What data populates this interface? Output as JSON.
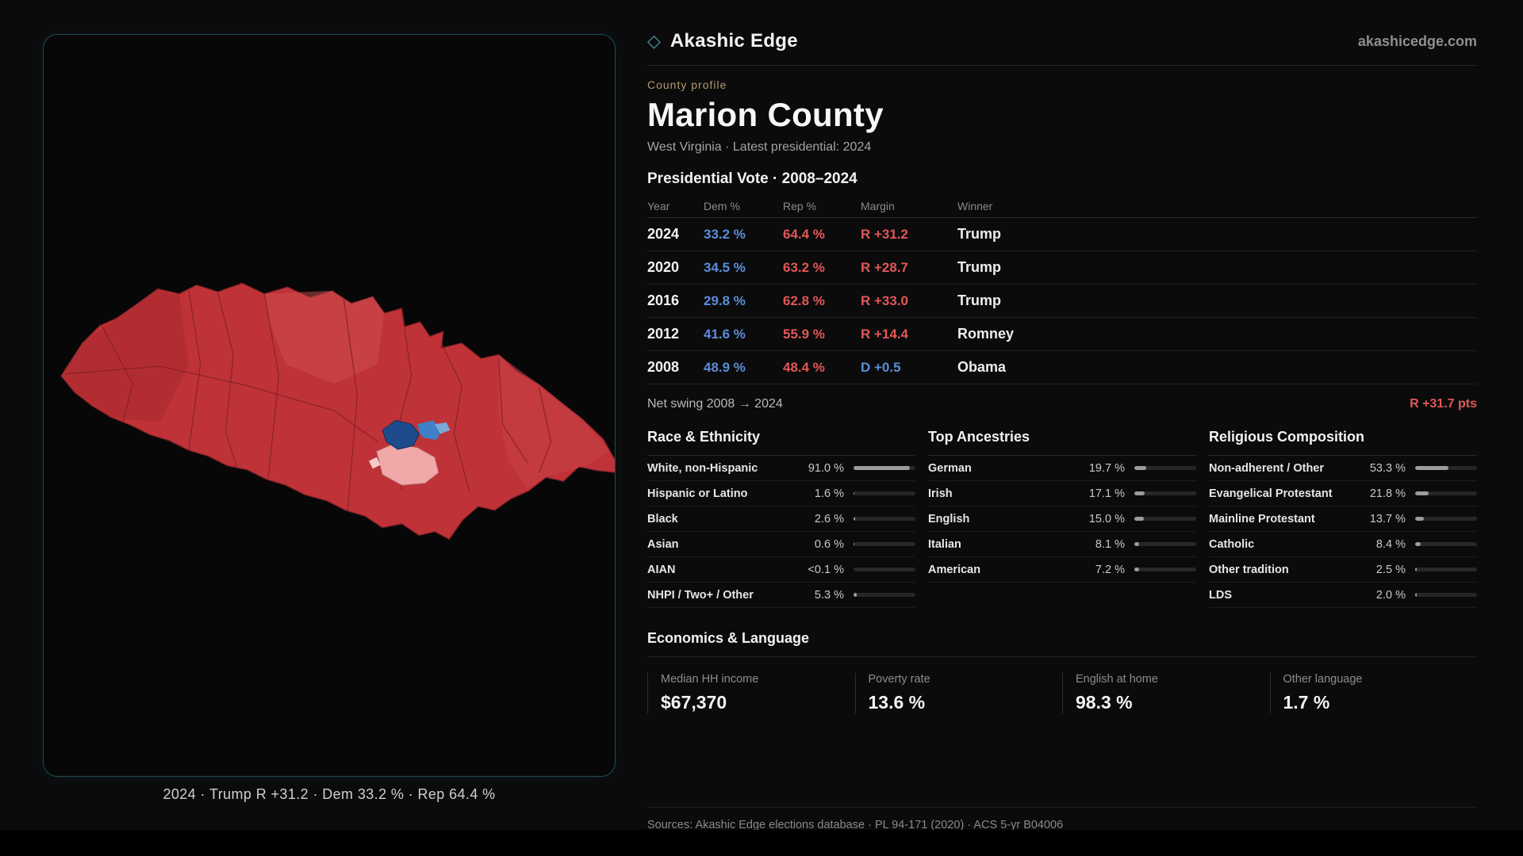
{
  "brand": {
    "logo_glyph": "◇",
    "logo_icon": "diamond-icon",
    "name": "Akashic Edge",
    "domain": "akashicedge.com"
  },
  "profile": {
    "eyebrow": "County profile",
    "title": "Marion County",
    "subtitle": "West Virginia · Latest presidential: 2024"
  },
  "map": {
    "caption": "2024 · Trump R +31.2 · Dem 33.2 % · Rep 64.4 %"
  },
  "vote_table": {
    "title": "Presidential Vote · 2008–2024",
    "headers": {
      "year": "Year",
      "dem": "Dem %",
      "rep": "Rep %",
      "margin": "Margin",
      "winner": "Winner"
    },
    "rows": [
      {
        "year": "2024",
        "dem": "33.2 %",
        "rep": "64.4 %",
        "margin": "R +31.2",
        "margin_party": "R",
        "winner": "Trump"
      },
      {
        "year": "2020",
        "dem": "34.5 %",
        "rep": "63.2 %",
        "margin": "R +28.7",
        "margin_party": "R",
        "winner": "Trump"
      },
      {
        "year": "2016",
        "dem": "29.8 %",
        "rep": "62.8 %",
        "margin": "R +33.0",
        "margin_party": "R",
        "winner": "Trump"
      },
      {
        "year": "2012",
        "dem": "41.6 %",
        "rep": "55.9 %",
        "margin": "R +14.4",
        "margin_party": "R",
        "winner": "Romney"
      },
      {
        "year": "2008",
        "dem": "48.9 %",
        "rep": "48.4 %",
        "margin": "D +0.5",
        "margin_party": "D",
        "winner": "Obama"
      }
    ]
  },
  "net_swing": {
    "label": "Net swing 2008 → 2024",
    "value": "R +31.7 pts"
  },
  "demographics": {
    "race": {
      "title": "Race & Ethnicity",
      "items": [
        {
          "label": "White, non-Hispanic",
          "value": "91.0 %",
          "pct": 91.0
        },
        {
          "label": "Hispanic or Latino",
          "value": "1.6 %",
          "pct": 1.6
        },
        {
          "label": "Black",
          "value": "2.6 %",
          "pct": 2.6
        },
        {
          "label": "Asian",
          "value": "0.6 %",
          "pct": 0.6
        },
        {
          "label": "AIAN",
          "value": "<0.1 %",
          "pct": 0.1
        },
        {
          "label": "NHPI / Two+ / Other",
          "value": "5.3 %",
          "pct": 5.3
        }
      ]
    },
    "ancestries": {
      "title": "Top Ancestries",
      "items": [
        {
          "label": "German",
          "value": "19.7 %",
          "pct": 19.7
        },
        {
          "label": "Irish",
          "value": "17.1 %",
          "pct": 17.1
        },
        {
          "label": "English",
          "value": "15.0 %",
          "pct": 15.0
        },
        {
          "label": "Italian",
          "value": "8.1 %",
          "pct": 8.1
        },
        {
          "label": "American",
          "value": "7.2 %",
          "pct": 7.2
        }
      ]
    },
    "religion": {
      "title": "Religious Composition",
      "items": [
        {
          "label": "Non-adherent / Other",
          "value": "53.3 %",
          "pct": 53.3
        },
        {
          "label": "Evangelical Protestant",
          "value": "21.8 %",
          "pct": 21.8
        },
        {
          "label": "Mainline Protestant",
          "value": "13.7 %",
          "pct": 13.7
        },
        {
          "label": "Catholic",
          "value": "8.4 %",
          "pct": 8.4
        },
        {
          "label": "Other tradition",
          "value": "2.5 %",
          "pct": 2.5
        },
        {
          "label": "LDS",
          "value": "2.0 %",
          "pct": 2.0
        }
      ]
    }
  },
  "economics": {
    "title": "Economics & Language",
    "stats": [
      {
        "label": "Median HH income",
        "value": "$67,370"
      },
      {
        "label": "Poverty rate",
        "value": "13.6 %"
      },
      {
        "label": "English at home",
        "value": "98.3 %"
      },
      {
        "label": "Other language",
        "value": "1.7 %"
      }
    ]
  },
  "footer": {
    "sources": "Sources: Akashic Edge elections database · PL 94-171 (2020) · ACS 5-yr B04006",
    "permalink": "akashicedge.com/counties/54049"
  },
  "colors": {
    "dem_blue": "#5b8dd9",
    "rep_red": "#e25757",
    "accent_gold": "#b49b6e",
    "panel_border": "#1d4e55",
    "map_red": "#bf3237",
    "map_blue": "#1e4b8c",
    "map_pink": "#f0a8a8"
  }
}
